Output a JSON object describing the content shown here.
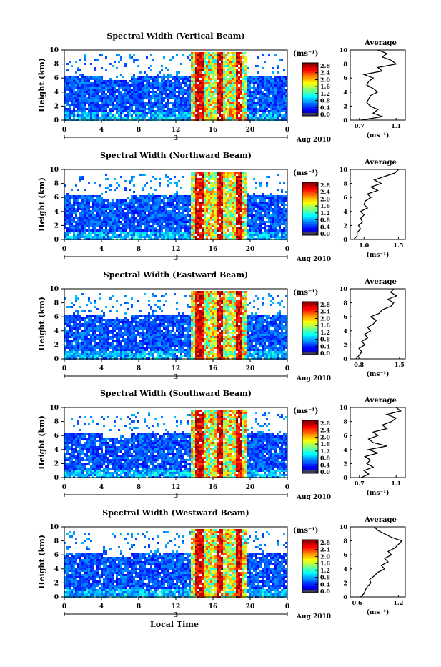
{
  "chart_data": [
    {
      "type": "heatmap",
      "title": "Spectral Width (Vertical Beam)",
      "xlabel": "",
      "ylabel": "Height (km)",
      "xlim": [
        0,
        24
      ],
      "ylim": [
        0,
        10
      ],
      "x_ticks": [
        "0",
        "4",
        "8",
        "12",
        "16",
        "20",
        "0"
      ],
      "y_ticks": [
        "0",
        "2",
        "4",
        "6",
        "8",
        "10"
      ],
      "day_label": "3",
      "date_label": "Aug 2010",
      "colorbar": {
        "unit": "(ms⁻¹)",
        "ticks": [
          "0.0",
          "0.4",
          "0.8",
          "1.2",
          "1.6",
          "2.0",
          "2.4",
          "2.8"
        ],
        "range": [
          0,
          2.8
        ]
      },
      "average_profile": {
        "title": "Average",
        "xlabel": "(ms⁻¹)",
        "x_ticks": [
          "0.7",
          "1.1"
        ],
        "xlim": [
          0.6,
          1.2
        ],
        "y_ticks": [
          "0",
          "2",
          "4",
          "6",
          "8",
          "10"
        ],
        "height_km": [
          0,
          0.5,
          1,
          1.5,
          2,
          2.5,
          3,
          3.5,
          4,
          4.5,
          5,
          5.5,
          6,
          6.5,
          7,
          7.5,
          8,
          8.5,
          9,
          9.5,
          10
        ],
        "values": [
          0.72,
          0.95,
          0.85,
          0.9,
          0.82,
          0.78,
          0.8,
          0.82,
          0.9,
          0.85,
          0.78,
          0.8,
          0.85,
          0.75,
          0.95,
          0.9,
          1.1,
          1.05,
          0.95,
          1.0,
          0.9
        ]
      }
    },
    {
      "type": "heatmap",
      "title": "Spectral Width (Northward Beam)",
      "xlabel": "",
      "ylabel": "Height (km)",
      "xlim": [
        0,
        24
      ],
      "ylim": [
        0,
        10
      ],
      "x_ticks": [
        "0",
        "4",
        "8",
        "12",
        "16",
        "20",
        "0"
      ],
      "y_ticks": [
        "0",
        "2",
        "4",
        "6",
        "8",
        "10"
      ],
      "day_label": "3",
      "date_label": "Aug 2010",
      "colorbar": {
        "unit": "(ms⁻¹)",
        "ticks": [
          "0.0",
          "0.4",
          "0.8",
          "1.2",
          "1.6",
          "2.0",
          "2.4",
          "2.8"
        ],
        "range": [
          0,
          2.8
        ]
      },
      "average_profile": {
        "title": "Average",
        "xlabel": "(ms⁻¹)",
        "x_ticks": [
          "1.0",
          "1.5"
        ],
        "xlim": [
          0.8,
          1.6
        ],
        "y_ticks": [
          "0",
          "2",
          "4",
          "6",
          "8",
          "10"
        ],
        "height_km": [
          0,
          0.5,
          1,
          1.5,
          2,
          2.5,
          3,
          3.5,
          4,
          4.5,
          5,
          5.5,
          6,
          6.5,
          7,
          7.5,
          8,
          8.5,
          9,
          9.5,
          10
        ],
        "values": [
          0.85,
          0.9,
          0.9,
          0.95,
          0.92,
          0.98,
          0.95,
          1.0,
          0.95,
          1.05,
          1.0,
          1.02,
          1.1,
          1.05,
          1.2,
          1.1,
          1.25,
          1.15,
          1.3,
          1.45,
          1.5
        ]
      }
    },
    {
      "type": "heatmap",
      "title": "Spectral Width (Eastward Beam)",
      "xlabel": "",
      "ylabel": "Height (km)",
      "xlim": [
        0,
        24
      ],
      "ylim": [
        0,
        10
      ],
      "x_ticks": [
        "0",
        "4",
        "8",
        "12",
        "16",
        "20",
        "0"
      ],
      "y_ticks": [
        "0",
        "2",
        "4",
        "6",
        "8",
        "10"
      ],
      "day_label": "3",
      "date_label": "Aug 2010",
      "colorbar": {
        "unit": "(ms⁻¹)",
        "ticks": [
          "0.0",
          "0.4",
          "0.8",
          "1.2",
          "1.6",
          "2.0",
          "2.4",
          "2.8"
        ],
        "range": [
          0,
          2.8
        ]
      },
      "average_profile": {
        "title": "Average",
        "xlabel": "(ms⁻¹)",
        "x_ticks": [
          "0.8",
          "1.5"
        ],
        "xlim": [
          0.65,
          1.6
        ],
        "y_ticks": [
          "0",
          "2",
          "4",
          "6",
          "8",
          "10"
        ],
        "height_km": [
          0,
          0.5,
          1,
          1.5,
          2,
          2.5,
          3,
          3.5,
          4,
          4.5,
          5,
          5.5,
          6,
          6.5,
          7,
          7.5,
          8,
          8.5,
          9,
          9.5,
          10
        ],
        "values": [
          0.75,
          0.8,
          0.85,
          0.8,
          0.9,
          0.85,
          0.95,
          0.9,
          1.0,
          0.95,
          1.05,
          1.1,
          1.0,
          1.15,
          1.2,
          1.35,
          1.4,
          1.3,
          1.45,
          1.35,
          1.4
        ]
      }
    },
    {
      "type": "heatmap",
      "title": "Spectral Width (Southward Beam)",
      "xlabel": "",
      "ylabel": "Height (km)",
      "xlim": [
        0,
        24
      ],
      "ylim": [
        0,
        10
      ],
      "x_ticks": [
        "0",
        "4",
        "8",
        "12",
        "16",
        "20",
        "0"
      ],
      "y_ticks": [
        "0",
        "2",
        "4",
        "6",
        "8",
        "10"
      ],
      "day_label": "3",
      "date_label": "Aug 2010",
      "colorbar": {
        "unit": "(ms⁻¹)",
        "ticks": [
          "0.0",
          "0.4",
          "0.8",
          "1.2",
          "1.6",
          "2.0",
          "2.4",
          "2.8"
        ],
        "range": [
          0,
          2.8
        ]
      },
      "average_profile": {
        "title": "Average",
        "xlabel": "(ms⁻¹)",
        "x_ticks": [
          "0.7",
          "1.1"
        ],
        "xlim": [
          0.6,
          1.2
        ],
        "y_ticks": [
          "0",
          "2",
          "4",
          "6",
          "8",
          "10"
        ],
        "height_km": [
          0,
          0.5,
          1,
          1.5,
          2,
          2.5,
          3,
          3.5,
          4,
          4.5,
          5,
          5.5,
          6,
          6.5,
          7,
          7.5,
          8,
          8.5,
          9,
          9.5,
          10
        ],
        "values": [
          0.72,
          0.8,
          0.75,
          0.85,
          0.78,
          0.82,
          0.76,
          0.9,
          0.8,
          1.0,
          0.85,
          0.8,
          0.9,
          0.85,
          1.0,
          0.95,
          1.05,
          1.1,
          1.0,
          1.15,
          1.1
        ]
      }
    },
    {
      "type": "heatmap",
      "title": "Spectral Width (Westward Beam)",
      "xlabel": "Local Time",
      "ylabel": "Height (km)",
      "xlim": [
        0,
        24
      ],
      "ylim": [
        0,
        10
      ],
      "x_ticks": [
        "0",
        "4",
        "8",
        "12",
        "16",
        "20",
        "0"
      ],
      "y_ticks": [
        "0",
        "2",
        "4",
        "6",
        "8",
        "10"
      ],
      "day_label": "3",
      "date_label": "Aug 2010",
      "colorbar": {
        "unit": "(ms⁻¹)",
        "ticks": [
          "0.0",
          "0.4",
          "0.8",
          "1.2",
          "1.6",
          "2.0",
          "2.4",
          "2.8"
        ],
        "range": [
          0,
          2.8
        ]
      },
      "average_profile": {
        "title": "Average",
        "xlabel": "(ms⁻¹)",
        "x_ticks": [
          "0.6",
          "1.2"
        ],
        "xlim": [
          0.5,
          1.3
        ],
        "y_ticks": [
          "0",
          "2",
          "4",
          "6",
          "8",
          "10"
        ],
        "height_km": [
          0,
          0.5,
          1,
          1.5,
          2,
          2.5,
          3,
          3.5,
          4,
          4.5,
          5,
          5.5,
          6,
          6.5,
          7,
          7.5,
          8,
          8.5,
          9,
          9.5,
          10
        ],
        "values": [
          0.65,
          0.7,
          0.72,
          0.75,
          0.8,
          0.78,
          0.85,
          0.9,
          1.0,
          0.95,
          1.05,
          1.0,
          1.1,
          1.05,
          1.15,
          1.2,
          1.25,
          1.1,
          1.0,
          0.9,
          0.85
        ]
      }
    }
  ]
}
